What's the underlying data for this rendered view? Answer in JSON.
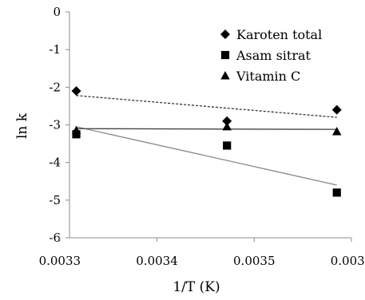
{
  "chart_data": {
    "type": "scatter",
    "xlabel": "1/T (K)",
    "ylabel": "ln k",
    "xlim": [
      0.00331,
      0.0036
    ],
    "ylim": [
      -6,
      0
    ],
    "xticks": [
      "0.0033",
      "0.0034",
      "0.0035",
      "0.0036"
    ],
    "xtick_values": [
      0.0033,
      0.0034,
      0.0035,
      0.0036
    ],
    "yticks": [
      "0",
      "-1",
      "-2",
      "-3",
      "-4",
      "-5",
      "-6"
    ],
    "ytick_values": [
      0,
      -1,
      -2,
      -3,
      -4,
      -5,
      -6
    ],
    "grid": false,
    "legend_position": "top-right",
    "series": [
      {
        "name": "Karoten total",
        "marker": "diamond",
        "x": [
          0.003317,
          0.003472,
          0.003585
        ],
        "y": [
          -2.1,
          -2.9,
          -2.6
        ],
        "trendline": {
          "x": [
            0.003317,
            0.003585
          ],
          "y": [
            -2.22,
            -2.8
          ],
          "color": "#333333",
          "dash": "3,2"
        }
      },
      {
        "name": "Asam sitrat",
        "marker": "square",
        "x": [
          0.003317,
          0.003472,
          0.003585
        ],
        "y": [
          -3.25,
          -3.55,
          -4.8
        ],
        "trendline": {
          "x": [
            0.003317,
            0.003585
          ],
          "y": [
            -3.05,
            -4.6
          ],
          "color": "#888888",
          "dash": ""
        }
      },
      {
        "name": "Vitamin C",
        "marker": "triangle",
        "x": [
          0.003317,
          0.003472,
          0.003585
        ],
        "y": [
          -3.15,
          -3.05,
          -3.18
        ],
        "trendline": {
          "x": [
            0.003317,
            0.003585
          ],
          "y": [
            -3.1,
            -3.12
          ],
          "color": "#444444",
          "dash": ""
        }
      }
    ]
  }
}
